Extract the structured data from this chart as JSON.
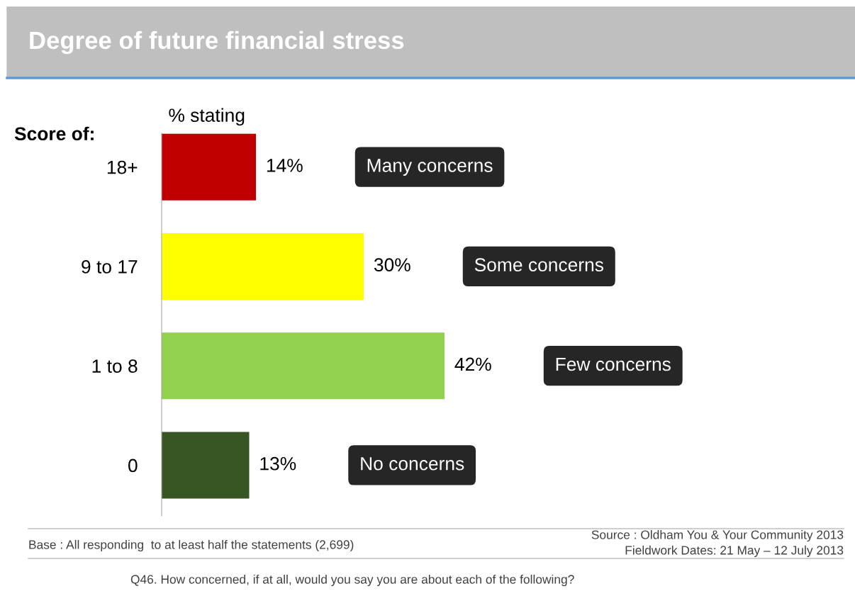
{
  "chart_data": {
    "type": "bar",
    "orientation": "horizontal",
    "title": "Degree of future financial stress",
    "xlabel": "% stating",
    "ylabel": "Score of:",
    "categories": [
      "18+",
      "9 to 17",
      "1 to 8",
      "0"
    ],
    "values": [
      14,
      30,
      42,
      13
    ],
    "colors": [
      "#c00000",
      "#ffff00",
      "#92d050",
      "#375623"
    ],
    "data_labels": true,
    "value_labels": [
      "14%",
      "30%",
      "42%",
      "13%"
    ],
    "grid": false,
    "annotations": [
      "Many concerns",
      "Some concerns",
      "Few concerns",
      "No concerns",
      "Base : All responding  to at least half the statements (2,699)",
      "Source : Oldham You & Your Community 2013\nFieldwork Dates: 21 May – 12 July 2013",
      "Q46. How concerned, if at all, would you say you are about each of the following?"
    ]
  }
}
